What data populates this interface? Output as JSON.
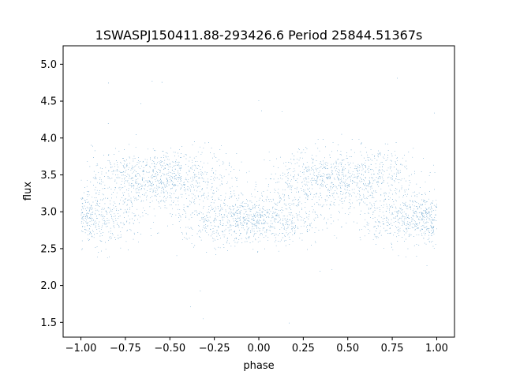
{
  "chart_data": {
    "type": "scatter",
    "title": "1SWASPJ150411.88-293426.6 Period 25844.51367s",
    "xlabel": "phase",
    "ylabel": "flux",
    "xlim": [
      -1.1,
      1.1
    ],
    "ylim": [
      1.3,
      5.25
    ],
    "xticks": [
      -1.0,
      -0.75,
      -0.5,
      -0.25,
      0.0,
      0.25,
      0.5,
      0.75,
      1.0
    ],
    "xtick_labels": [
      "−1.00",
      "−0.75",
      "−0.50",
      "−0.25",
      "0.00",
      "0.25",
      "0.50",
      "0.75",
      "1.00"
    ],
    "yticks": [
      1.5,
      2.0,
      2.5,
      3.0,
      3.5,
      4.0,
      4.5,
      5.0
    ],
    "ytick_labels": [
      "1.5",
      "2.0",
      "2.5",
      "3.0",
      "3.5",
      "4.0",
      "4.5",
      "5.0"
    ],
    "grid": false,
    "legend": "none",
    "point_color": "#1f77b4",
    "series": [
      {
        "description": "phase-folded light curve, double-humped pattern repeated over two cycles",
        "x_range": [
          -1.0,
          1.0
        ],
        "upper_branch_flux": 3.45,
        "lower_branch_flux": 2.9,
        "upper_branch_phase_centers": [
          -0.55,
          0.45
        ],
        "lower_branch_phase_centers": [
          -0.95,
          0.0,
          1.0
        ],
        "outlier_flux_range": [
          1.45,
          5.0
        ]
      }
    ]
  }
}
